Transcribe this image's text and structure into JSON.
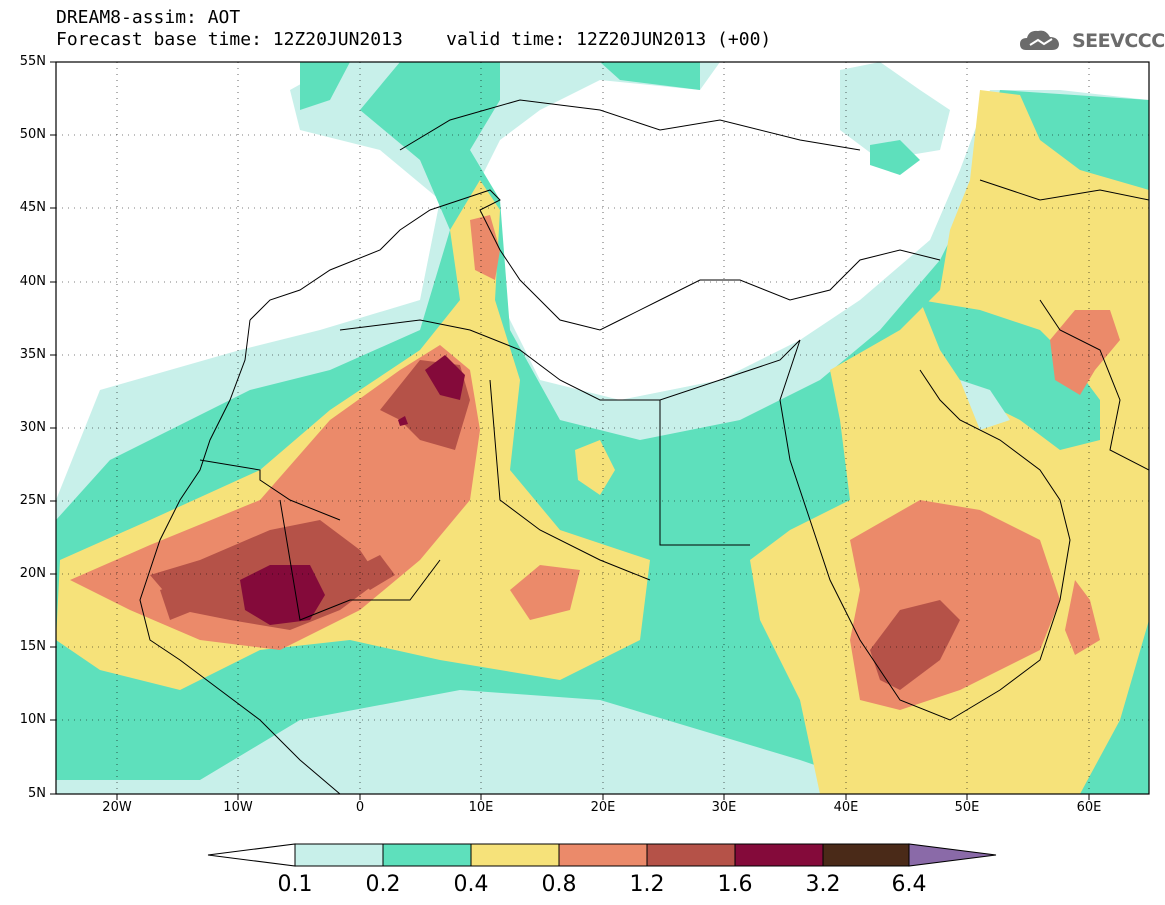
{
  "header": {
    "line1": "DREAM8-assim: AOT",
    "line2": "Forecast base time: 12Z20JUN2013    valid time: 12Z20JUN2013 (+00)"
  },
  "logo": {
    "text": "SEEVCCC",
    "icon": "cloud-icon"
  },
  "map": {
    "lat_labels": [
      "55N",
      "50N",
      "45N",
      "40N",
      "35N",
      "30N",
      "25N",
      "20N",
      "15N",
      "10N",
      "5N"
    ],
    "lon_labels": [
      "20W",
      "10W",
      "0",
      "10E",
      "20E",
      "30E",
      "40E",
      "50E",
      "60E"
    ]
  },
  "colorbar": {
    "labels": [
      "0.1",
      "0.2",
      "0.4",
      "0.8",
      "1.2",
      "1.6",
      "3.2",
      "6.4"
    ],
    "colors": [
      "#c8f0ea",
      "#5ee0bc",
      "#f6e27a",
      "#eb8a6a",
      "#b55248",
      "#840a3a",
      "#4a2a18",
      "#8a6aa8"
    ]
  }
}
